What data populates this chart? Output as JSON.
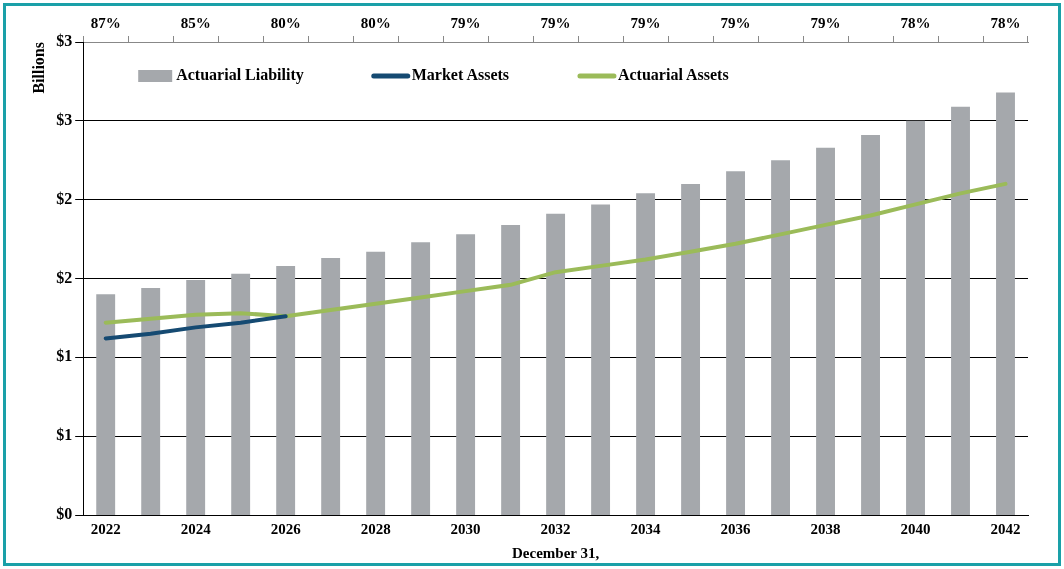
{
  "chart_data": {
    "type": "bar",
    "ylabel": "Billions",
    "xlabel": "December 31,",
    "categories": [
      "2022",
      null,
      "2024",
      null,
      "2026",
      null,
      "2028",
      null,
      "2030",
      null,
      "2032",
      null,
      "2034",
      null,
      "2036",
      null,
      "2038",
      null,
      "2040",
      null,
      "2042"
    ],
    "series": [
      {
        "name": "Actuarial Liability",
        "color": "#a5a8ac",
        "values": [
          1.4,
          1.44,
          1.49,
          1.53,
          1.58,
          1.63,
          1.67,
          1.73,
          1.78,
          1.84,
          1.91,
          1.97,
          2.04,
          2.1,
          2.18,
          2.25,
          2.33,
          2.41,
          2.5,
          2.59,
          2.68
        ]
      },
      {
        "name": "Market Assets",
        "type": "line",
        "color": "#154a72",
        "values": [
          1.12,
          1.15,
          1.19,
          1.22,
          1.26,
          null,
          null,
          null,
          null,
          null,
          null,
          null,
          null,
          null,
          null,
          null,
          null,
          null,
          null,
          null,
          null
        ]
      },
      {
        "name": "Actuarial Assets",
        "type": "line",
        "color": "#9bbb59",
        "values": [
          1.22,
          1.245,
          1.27,
          1.28,
          1.26,
          1.3,
          1.34,
          1.38,
          1.42,
          1.46,
          1.54,
          1.58,
          1.62,
          1.67,
          1.72,
          1.78,
          1.84,
          1.9,
          1.97,
          2.04,
          2.1
        ]
      }
    ],
    "ylim": [
      0,
      3
    ],
    "yticks": [
      {
        "value": 0,
        "label": "$0"
      },
      {
        "value": 0.5,
        "label": "$1"
      },
      {
        "value": 1,
        "label": "$1"
      },
      {
        "value": 1.5,
        "label": "$2"
      },
      {
        "value": 2,
        "label": "$2"
      },
      {
        "value": 2.5,
        "label": "$3"
      },
      {
        "value": 3,
        "label": "$3"
      }
    ],
    "grid": "y",
    "legend": "top",
    "marker": "none",
    "annotations": [
      "87%",
      "85%",
      "80%",
      "80%",
      "79%",
      "79%",
      "79%",
      "79%",
      "79%",
      "78%",
      "78%"
    ]
  }
}
